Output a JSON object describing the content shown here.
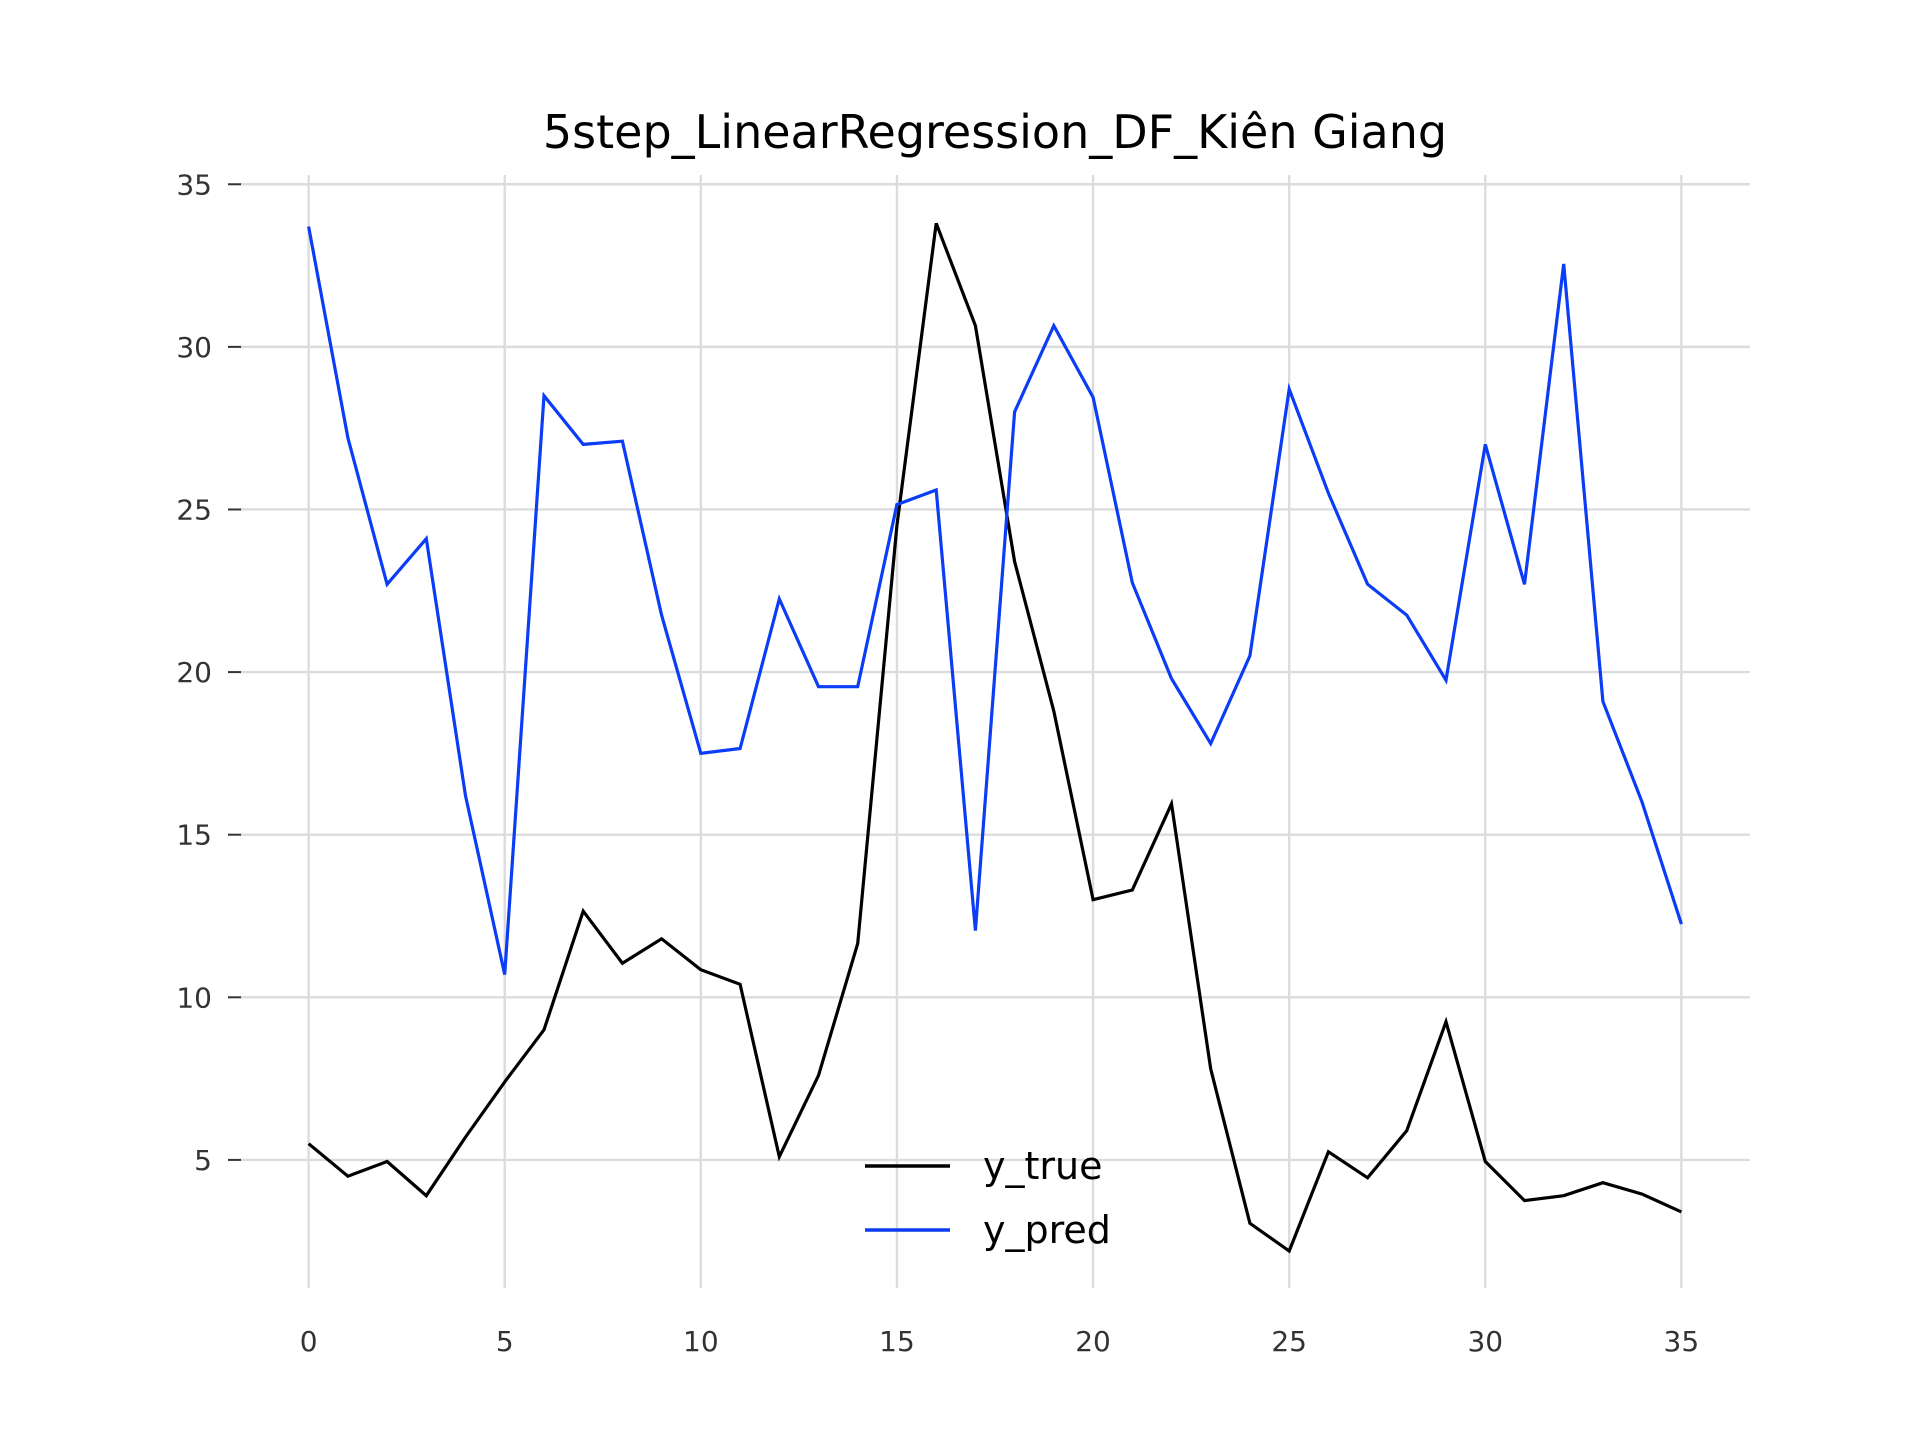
{
  "chart_data": {
    "type": "line",
    "title": "5step_LinearRegression_DF_Kiên Giang",
    "xlabel": "",
    "ylabel": "",
    "x": [
      0,
      1,
      2,
      3,
      4,
      5,
      6,
      7,
      8,
      9,
      10,
      11,
      12,
      13,
      14,
      15,
      16,
      17,
      18,
      19,
      20,
      21,
      22,
      23,
      24,
      25,
      26,
      27,
      28,
      29,
      30,
      31,
      32,
      33,
      34,
      35
    ],
    "xlim": [
      -1.75,
      36.75
    ],
    "ylim": [
      1.0,
      35.5
    ],
    "xticks": [
      0,
      5,
      10,
      15,
      20,
      25,
      30,
      35
    ],
    "yticks": [
      5,
      10,
      15,
      20,
      25,
      30,
      35
    ],
    "xtick_labels": [
      "0",
      "5",
      "10",
      "15",
      "20",
      "25",
      "30",
      "35"
    ],
    "ytick_labels": [
      "5",
      "10",
      "15",
      "20",
      "25",
      "30",
      "35"
    ],
    "grid": true,
    "legend_position": "lower-center",
    "series": [
      {
        "name": "y_true",
        "color": "#000000",
        "values": [
          5.5,
          4.5,
          4.95,
          3.9,
          5.7,
          7.4,
          9.0,
          12.65,
          11.05,
          11.8,
          10.85,
          10.4,
          5.1,
          7.6,
          11.65,
          24.5,
          33.8,
          30.65,
          23.4,
          18.8,
          13.0,
          13.3,
          15.95,
          7.8,
          3.05,
          2.2,
          5.25,
          4.45,
          5.9,
          9.25,
          4.95,
          3.75,
          3.9,
          4.3,
          3.95,
          3.4
        ]
      },
      {
        "name": "y_pred",
        "color": "#0b3cf6",
        "values": [
          33.7,
          27.2,
          22.7,
          24.1,
          16.2,
          10.7,
          28.5,
          27.0,
          27.1,
          21.75,
          17.5,
          17.65,
          22.25,
          19.55,
          19.55,
          25.15,
          25.6,
          12.05,
          28.0,
          30.65,
          28.45,
          22.75,
          19.8,
          17.8,
          20.5,
          28.7,
          25.5,
          22.7,
          21.75,
          19.75,
          27.0,
          22.7,
          32.55,
          19.1,
          16.0,
          12.25
        ]
      }
    ]
  }
}
